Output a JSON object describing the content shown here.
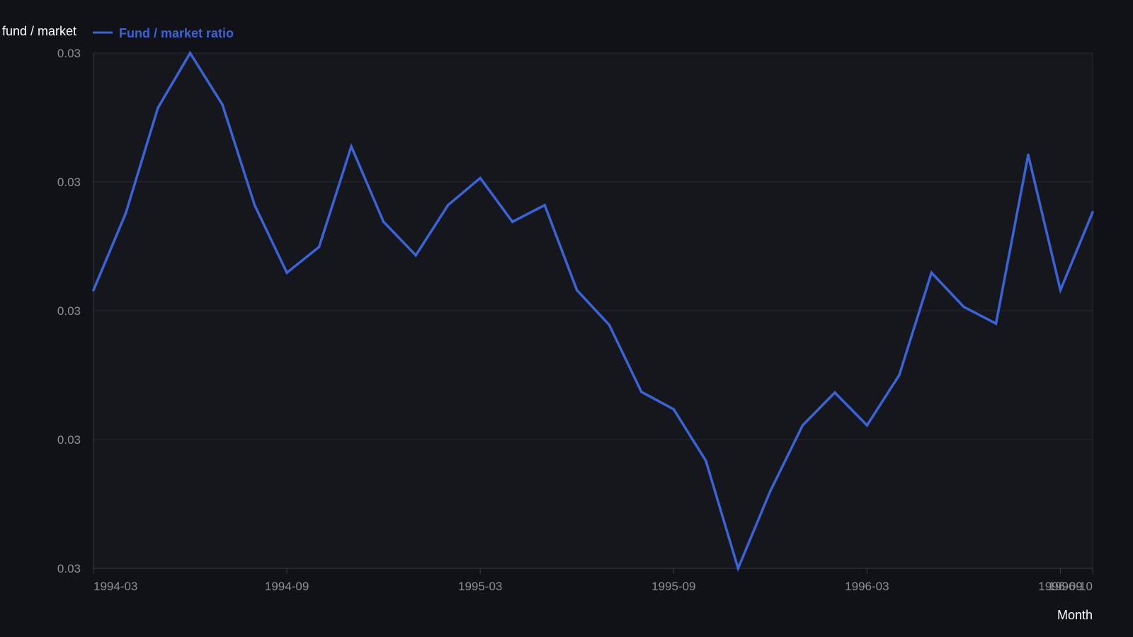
{
  "chart_data": {
    "type": "line",
    "ylabel": "fund / market",
    "xlabel": "Month",
    "legend": {
      "position": "top-left",
      "entries": [
        "Fund / market ratio"
      ]
    },
    "grid": true,
    "colors": {
      "background": "#111217",
      "plot_background": "#16171c",
      "grid": "#2a2b31",
      "axis": "#3a3b42",
      "tick_text": "#8e8e98",
      "label_text": "#ffffff",
      "series": "#3a63d8"
    },
    "ylim": [
      0.0296,
      0.0304
    ],
    "y_ticks": [
      {
        "value": 0.0296,
        "label": "0.03"
      },
      {
        "value": 0.0298,
        "label": "0.03"
      },
      {
        "value": 0.03,
        "label": "0.03"
      },
      {
        "value": 0.0302,
        "label": "0.03"
      },
      {
        "value": 0.0304,
        "label": "0.03"
      }
    ],
    "x": [
      "1994-03",
      "1994-04",
      "1994-05",
      "1994-06",
      "1994-07",
      "1994-08",
      "1994-09",
      "1994-10",
      "1994-11",
      "1994-12",
      "1995-01",
      "1995-02",
      "1995-03",
      "1995-04",
      "1995-05",
      "1995-06",
      "1995-07",
      "1995-08",
      "1995-09",
      "1995-10",
      "1995-11",
      "1995-12",
      "1996-01",
      "1996-02",
      "1996-03",
      "1996-04",
      "1996-05",
      "1996-06",
      "1996-07",
      "1996-08",
      "1996-09",
      "1996-10"
    ],
    "x_ticks": [
      {
        "value": "1994-03",
        "label": "1994-03"
      },
      {
        "value": "1994-09",
        "label": "1994-09"
      },
      {
        "value": "1995-03",
        "label": "1995-03"
      },
      {
        "value": "1995-09",
        "label": "1995-09"
      },
      {
        "value": "1996-03",
        "label": "1996-03"
      },
      {
        "value": "1996-09",
        "label": "1996-09"
      },
      {
        "value": "1996-10",
        "label": "1996-10"
      }
    ],
    "series": [
      {
        "name": "Fund / market ratio",
        "values": [
          0.030032,
          0.030151,
          0.030315,
          0.0304,
          0.03032,
          0.030164,
          0.030059,
          0.030099,
          0.030255,
          0.030138,
          0.030086,
          0.030164,
          0.030206,
          0.030138,
          0.030164,
          0.030032,
          0.029978,
          0.029874,
          0.029847,
          0.029767,
          0.0296,
          0.02972,
          0.029822,
          0.029873,
          0.029822,
          0.0299,
          0.030059,
          0.030006,
          0.02998,
          0.030242,
          0.030032,
          0.030153
        ]
      }
    ]
  }
}
